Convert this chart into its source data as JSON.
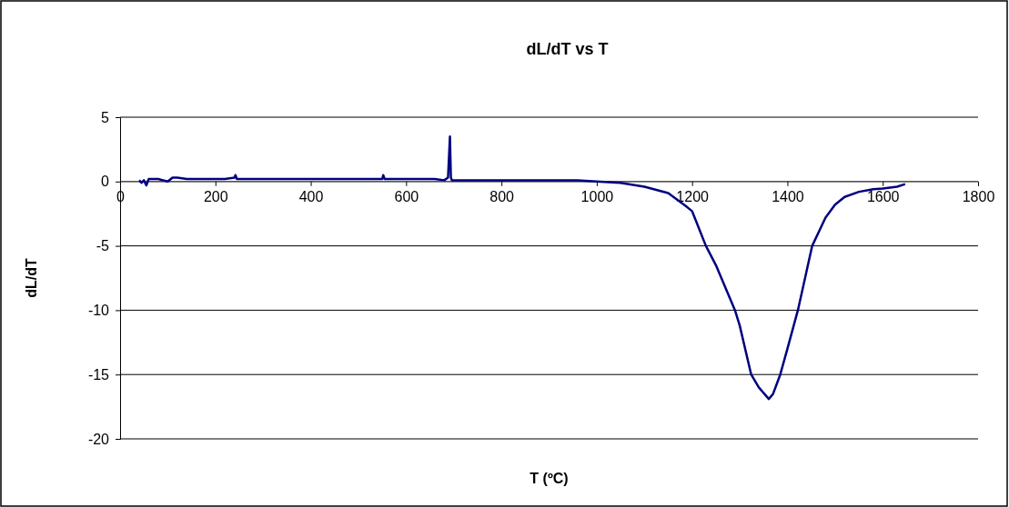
{
  "chart_data": {
    "type": "line",
    "title": "dL/dT vs T",
    "xlabel": "T (ºC)",
    "ylabel": "dL/dT",
    "xlim": [
      0,
      1800
    ],
    "xticks": [
      0,
      200,
      400,
      600,
      800,
      1000,
      1200,
      1400,
      1600,
      1800
    ],
    "ylim": [
      -20,
      5
    ],
    "yticks": [
      -20,
      -15,
      -10,
      -5,
      0,
      5
    ],
    "grid": "y",
    "marker": "none",
    "line_style": "solid",
    "series": [
      {
        "color": "#000080",
        "x": [
          40,
          45,
          50,
          55,
          60,
          70,
          80,
          90,
          100,
          110,
          120,
          140,
          160,
          180,
          200,
          220,
          240,
          242,
          245,
          260,
          280,
          300,
          340,
          380,
          400,
          440,
          480,
          520,
          550,
          552,
          555,
          580,
          620,
          660,
          680,
          688,
          692,
          694,
          696,
          700,
          720,
          760,
          800,
          860,
          900,
          960,
          1000,
          1050,
          1100,
          1150,
          1190,
          1200,
          1229,
          1250,
          1290,
          1300,
          1324,
          1340,
          1361,
          1370,
          1385,
          1400,
          1422,
          1440,
          1452,
          1480,
          1500,
          1520,
          1550,
          1580,
          1600,
          1630,
          1647
        ],
        "values": [
          0.1,
          -0.1,
          0.1,
          -0.3,
          0.2,
          0.2,
          0.2,
          0.1,
          0.0,
          0.3,
          0.3,
          0.2,
          0.2,
          0.2,
          0.2,
          0.2,
          0.3,
          0.5,
          0.2,
          0.2,
          0.2,
          0.2,
          0.2,
          0.2,
          0.2,
          0.2,
          0.2,
          0.2,
          0.2,
          0.5,
          0.2,
          0.2,
          0.2,
          0.2,
          0.1,
          0.3,
          3.5,
          0.3,
          0.1,
          0.1,
          0.1,
          0.1,
          0.1,
          0.1,
          0.1,
          0.1,
          0.0,
          -0.1,
          -0.4,
          -0.9,
          -2.0,
          -2.3,
          -5,
          -6.5,
          -10,
          -11.2,
          -15,
          -16,
          -16.9,
          -16.5,
          -15,
          -13,
          -10,
          -7,
          -5,
          -2.8,
          -1.8,
          -1.2,
          -0.8,
          -0.6,
          -0.55,
          -0.4,
          -0.2
        ]
      }
    ]
  }
}
